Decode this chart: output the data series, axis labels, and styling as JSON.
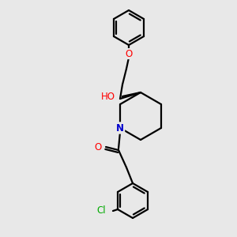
{
  "bg_color": "#e8e8e8",
  "bond_color": "#000000",
  "atom_colors": {
    "O": "#ff0000",
    "N": "#0000cd",
    "Cl": "#00aa00",
    "Ho": "#6baed6"
  },
  "figsize": [
    3.0,
    3.0
  ],
  "dpi": 100,
  "lw": 1.6,
  "ring_r": 22,
  "pip_r": 32
}
